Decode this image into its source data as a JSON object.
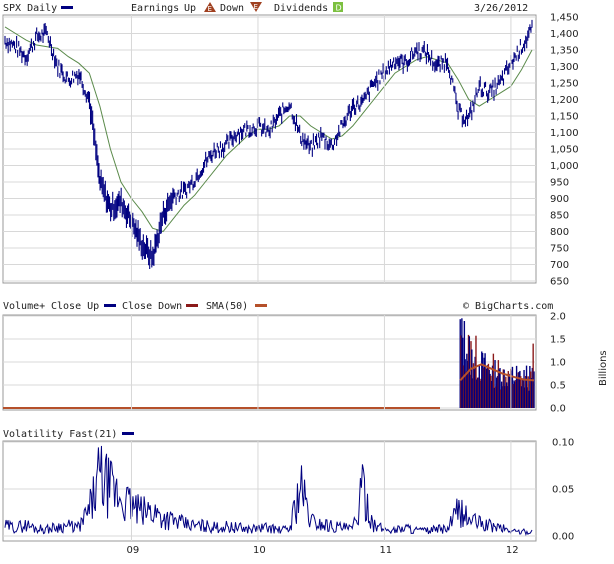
{
  "header": {
    "symbol": "SPX Daily",
    "earnings_label": "Earnings",
    "up_label": "Up",
    "up_marker": "E",
    "down_label": "Down",
    "down_marker": "E",
    "dividends_label": "Dividends",
    "dividends_marker": "D",
    "date": "3/26/2012"
  },
  "volume_panel": {
    "title": "Volume+",
    "close_up_label": "Close Up",
    "close_down_label": "Close Down",
    "sma_label": "SMA(50)",
    "source": "© BigCharts.com",
    "unit_label": "Billions"
  },
  "volatility_panel": {
    "title": "Volatility Fast(21)"
  },
  "colors": {
    "price_line": "#000080",
    "sma_price": "#5a8a4a",
    "volume_up": "#000080",
    "volume_down": "#8b1a1a",
    "volume_sma": "#b5502a",
    "volatility": "#000080",
    "grid": "#d8d8d8"
  },
  "chart_data": [
    {
      "type": "line",
      "title": "SPX Daily",
      "x_tick_labels": [
        "09",
        "10",
        "11",
        "12"
      ],
      "x": [
        "2008-01",
        "2008-02",
        "2008-03",
        "2008-04",
        "2008-05",
        "2008-06",
        "2008-07",
        "2008-08",
        "2008-09",
        "2008-10",
        "2008-11",
        "2008-12",
        "2009-01",
        "2009-02",
        "2009-03",
        "2009-04",
        "2009-05",
        "2009-06",
        "2009-07",
        "2009-08",
        "2009-09",
        "2009-10",
        "2009-11",
        "2009-12",
        "2010-01",
        "2010-02",
        "2010-03",
        "2010-04",
        "2010-05",
        "2010-06",
        "2010-07",
        "2010-08",
        "2010-09",
        "2010-10",
        "2010-11",
        "2010-12",
        "2011-01",
        "2011-02",
        "2011-03",
        "2011-04",
        "2011-05",
        "2011-06",
        "2011-07",
        "2011-08",
        "2011-09",
        "2011-10",
        "2011-11",
        "2011-12",
        "2012-01",
        "2012-02",
        "2012-03"
      ],
      "series": [
        {
          "values": [
            1380,
            1360,
            1330,
            1390,
            1400,
            1300,
            1260,
            1280,
            1200,
            950,
            870,
            890,
            830,
            760,
            720,
            850,
            910,
            920,
            960,
            1010,
            1050,
            1060,
            1100,
            1110,
            1120,
            1100,
            1150,
            1190,
            1090,
            1050,
            1090,
            1060,
            1120,
            1180,
            1190,
            1250,
            1280,
            1320,
            1310,
            1350,
            1340,
            1300,
            1320,
            1160,
            1140,
            1240,
            1220,
            1250,
            1310,
            1360,
            1410
          ]
        },
        {
          "values": [
            1420,
            1400,
            1380,
            1365,
            1360,
            1355,
            1330,
            1310,
            1280,
            1180,
            1050,
            950,
            900,
            860,
            810,
            800,
            840,
            880,
            910,
            950,
            990,
            1030,
            1060,
            1090,
            1110,
            1110,
            1120,
            1150,
            1150,
            1120,
            1100,
            1080,
            1090,
            1120,
            1160,
            1200,
            1240,
            1280,
            1300,
            1320,
            1330,
            1320,
            1310,
            1260,
            1200,
            1180,
            1200,
            1220,
            1240,
            1290,
            1350
          ]
        }
      ],
      "y_ticks": [
        "1,450",
        "1,400",
        "1,350",
        "1,300",
        "1,250",
        "1,200",
        "1,150",
        "1,100",
        "1,050",
        "1,000",
        "950",
        "900",
        "850",
        "800",
        "750",
        "700",
        "650"
      ],
      "ylim": [
        650,
        1450
      ],
      "grid": true
    },
    {
      "type": "bar",
      "title": "Volume+",
      "ylabel": "Billions",
      "y_ticks": [
        "2.0",
        "1.5",
        "1.0",
        "0.5",
        "0.0"
      ],
      "ylim": [
        0,
        2.0
      ],
      "note": "volume only shown from late 2011 onward",
      "x": [
        "2011-08",
        "2011-09",
        "2011-10",
        "2011-11",
        "2011-12",
        "2012-01",
        "2012-02",
        "2012-03"
      ],
      "series": [
        {
          "name": "Close Up",
          "values": [
            1.6,
            1.1,
            0.9,
            0.8,
            0.75,
            0.7,
            0.65,
            0.7
          ]
        },
        {
          "name": "Close Down",
          "values": [
            1.5,
            1.2,
            1.0,
            0.85,
            0.7,
            0.6,
            0.6,
            0.55
          ]
        },
        {
          "name": "SMA(50)",
          "values": [
            0.6,
            0.85,
            0.95,
            0.85,
            0.75,
            0.68,
            0.62,
            0.6
          ]
        }
      ],
      "grid": true
    },
    {
      "type": "line",
      "title": "Volatility Fast(21)",
      "y_ticks": [
        "0.10",
        "0.05",
        "0.00"
      ],
      "ylim": [
        0,
        0.1
      ],
      "x": [
        "2008-01",
        "2008-02",
        "2008-03",
        "2008-04",
        "2008-05",
        "2008-06",
        "2008-07",
        "2008-08",
        "2008-09",
        "2008-10",
        "2008-11",
        "2008-12",
        "2009-01",
        "2009-02",
        "2009-03",
        "2009-04",
        "2009-05",
        "2009-06",
        "2009-07",
        "2009-08",
        "2009-09",
        "2009-10",
        "2009-11",
        "2009-12",
        "2010-01",
        "2010-02",
        "2010-03",
        "2010-04",
        "2010-05",
        "2010-06",
        "2010-07",
        "2010-08",
        "2010-09",
        "2010-10",
        "2010-11",
        "2010-12",
        "2011-01",
        "2011-02",
        "2011-03",
        "2011-04",
        "2011-05",
        "2011-06",
        "2011-07",
        "2011-08",
        "2011-09",
        "2011-10",
        "2011-11",
        "2011-12",
        "2012-01",
        "2012-02",
        "2012-03"
      ],
      "series": [
        {
          "values": [
            0.012,
            0.01,
            0.013,
            0.009,
            0.008,
            0.011,
            0.012,
            0.01,
            0.03,
            0.07,
            0.055,
            0.045,
            0.035,
            0.028,
            0.03,
            0.022,
            0.018,
            0.014,
            0.012,
            0.012,
            0.01,
            0.011,
            0.01,
            0.008,
            0.009,
            0.01,
            0.007,
            0.008,
            0.06,
            0.018,
            0.014,
            0.012,
            0.01,
            0.008,
            0.055,
            0.012,
            0.008,
            0.007,
            0.01,
            0.007,
            0.006,
            0.008,
            0.008,
            0.03,
            0.02,
            0.015,
            0.012,
            0.01,
            0.006,
            0.005,
            0.005
          ]
        }
      ],
      "grid": true
    }
  ]
}
